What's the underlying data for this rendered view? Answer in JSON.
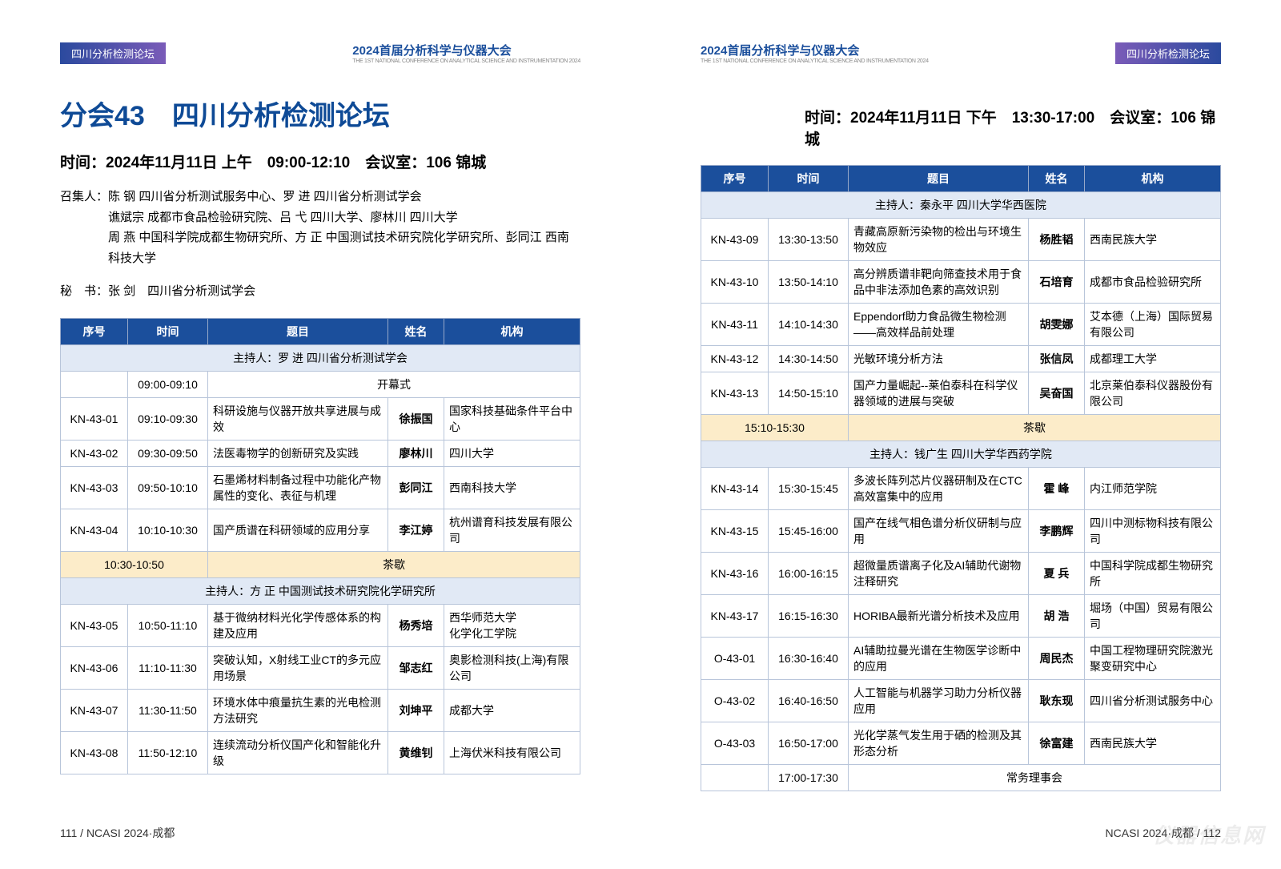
{
  "conference_title": "2024首届分析科学与仪器大会",
  "conference_sub": "THE 1ST NATIONAL CONFERENCE ON ANALYTICAL SCIENCE AND INSTRUMENTATION 2024",
  "header_badge": "四川分析检测论坛",
  "session_prefix": "分会43",
  "session_name": "四川分析检测论坛",
  "left": {
    "meta": "时间：2024年11月11日 上午　09:00-12:10　会议室：106 锦城",
    "convener_label": "召集人：",
    "convener1": "陈 钢 四川省分析测试服务中心、罗 进 四川省分析测试学会",
    "convener2": "谯斌宗 成都市食品检验研究院、吕 弋 四川大学、廖林川 四川大学",
    "convener3": "周 燕 中国科学院成都生物研究所、方 正 中国测试技术研究院化学研究所、彭同江 西南科技大学",
    "secretary_label": "秘　书：",
    "secretary": "张 剑　四川省分析测试学会",
    "headers": {
      "seq": "序号",
      "time": "时间",
      "title": "题目",
      "name": "姓名",
      "org": "机构"
    },
    "host1": "主持人：罗 进 四川省分析测试学会",
    "opening_time": "09:00-09:10",
    "opening": "开幕式",
    "rows1": [
      {
        "seq": "KN-43-01",
        "time": "09:10-09:30",
        "title": "科研设施与仪器开放共享进展与成效",
        "name": "徐振国",
        "org": "国家科技基础条件平台中心"
      },
      {
        "seq": "KN-43-02",
        "time": "09:30-09:50",
        "title": "法医毒物学的创新研究及实践",
        "name": "廖林川",
        "org": "四川大学"
      },
      {
        "seq": "KN-43-03",
        "time": "09:50-10:10",
        "title": "石墨烯材料制备过程中功能化产物属性的变化、表征与机理",
        "name": "彭同江",
        "org": "西南科技大学"
      },
      {
        "seq": "KN-43-04",
        "time": "10:10-10:30",
        "title": "国产质谱在科研领域的应用分享",
        "name": "李江婷",
        "org": "杭州谱育科技发展有限公司"
      }
    ],
    "break1_time": "10:30-10:50",
    "break_label": "茶歇",
    "host2": "主持人：方 正 中国测试技术研究院化学研究所",
    "rows2": [
      {
        "seq": "KN-43-05",
        "time": "10:50-11:10",
        "title": "基于微纳材料光化学传感体系的构建及应用",
        "name": "杨秀培",
        "org": "西华师范大学\n化学化工学院"
      },
      {
        "seq": "KN-43-06",
        "time": "11:10-11:30",
        "title": "突破认知，X射线工业CT的多元应用场景",
        "name": "邹志红",
        "org": "奥影检测科技(上海)有限公司"
      },
      {
        "seq": "KN-43-07",
        "time": "11:30-11:50",
        "title": "环境水体中痕量抗生素的光电检测方法研究",
        "name": "刘坤平",
        "org": "成都大学"
      },
      {
        "seq": "KN-43-08",
        "time": "11:50-12:10",
        "title": "连续流动分析仪国产化和智能化升级",
        "name": "黄维钊",
        "org": "上海伏米科技有限公司"
      }
    ]
  },
  "right": {
    "meta": "时间：2024年11月11日 下午　13:30-17:00　会议室：106 锦城",
    "headers": {
      "seq": "序号",
      "time": "时间",
      "title": "题目",
      "name": "姓名",
      "org": "机构"
    },
    "host1": "主持人：秦永平 四川大学华西医院",
    "rows1": [
      {
        "seq": "KN-43-09",
        "time": "13:30-13:50",
        "title": "青藏高原新污染物的检出与环境生物效应",
        "name": "杨胜韬",
        "org": "西南民族大学"
      },
      {
        "seq": "KN-43-10",
        "time": "13:50-14:10",
        "title": "高分辨质谱非靶向筛查技术用于食品中非法添加色素的高效识别",
        "name": "石培育",
        "org": "成都市食品检验研究所"
      },
      {
        "seq": "KN-43-11",
        "time": "14:10-14:30",
        "title": "Eppendorf助力食品微生物检测——高效样品前处理",
        "name": "胡雯娜",
        "org": "艾本德（上海）国际贸易有限公司"
      },
      {
        "seq": "KN-43-12",
        "time": "14:30-14:50",
        "title": "光敏环境分析方法",
        "name": "张信凤",
        "org": "成都理工大学"
      },
      {
        "seq": "KN-43-13",
        "time": "14:50-15:10",
        "title": "国产力量崛起--莱伯泰科在科学仪器领域的进展与突破",
        "name": "吴奋国",
        "org": "北京莱伯泰科仪器股份有限公司"
      }
    ],
    "break1_time": "15:10-15:30",
    "break_label": "茶歇",
    "host2": "主持人：钱广生 四川大学华西药学院",
    "rows2": [
      {
        "seq": "KN-43-14",
        "time": "15:30-15:45",
        "title": "多波长阵列芯片仪器研制及在CTC高效富集中的应用",
        "name": "霍 峰",
        "org": "内江师范学院"
      },
      {
        "seq": "KN-43-15",
        "time": "15:45-16:00",
        "title": "国产在线气相色谱分析仪研制与应用",
        "name": "李鹏辉",
        "org": "四川中测标物科技有限公司"
      },
      {
        "seq": "KN-43-16",
        "time": "16:00-16:15",
        "title": "超微量质谱离子化及AI辅助代谢物注释研究",
        "name": "夏 兵",
        "org": "中国科学院成都生物研究所"
      },
      {
        "seq": "KN-43-17",
        "time": "16:15-16:30",
        "title": "HORIBA最新光谱分析技术及应用",
        "name": "胡 浩",
        "org": "堀场（中国）贸易有限公司"
      },
      {
        "seq": "O-43-01",
        "time": "16:30-16:40",
        "title": "AI辅助拉曼光谱在生物医学诊断中的应用",
        "name": "周民杰",
        "org": "中国工程物理研究院激光聚变研究中心"
      },
      {
        "seq": "O-43-02",
        "time": "16:40-16:50",
        "title": "人工智能与机器学习助力分析仪器应用",
        "name": "耿东现",
        "org": "四川省分析测试服务中心"
      },
      {
        "seq": "O-43-03",
        "time": "16:50-17:00",
        "title": "光化学蒸气发生用于硒的检测及其形态分析",
        "name": "徐富建",
        "org": "西南民族大学"
      }
    ],
    "closing_time": "17:00-17:30",
    "closing": "常务理事会"
  },
  "footer_left": "111 /  NCASI 2024·成都",
  "footer_right": "NCASI 2024·成都  / 112",
  "watermark": "仪器信息网",
  "colors": {
    "primary": "#1b4f9c",
    "host_bg": "#e1e9f5",
    "break_bg": "#fcecc9",
    "border": "#b8c5da"
  }
}
